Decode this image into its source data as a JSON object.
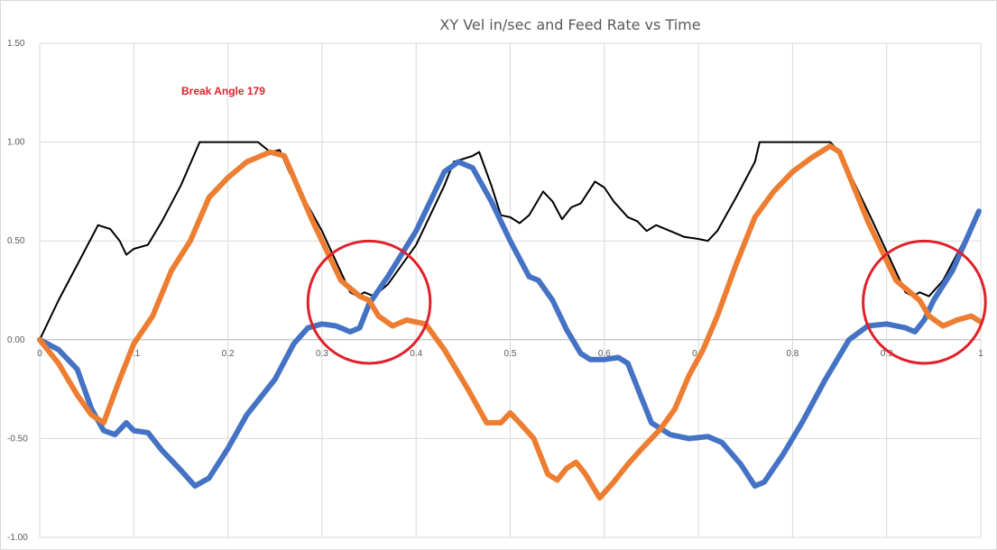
{
  "chart_data": {
    "type": "line",
    "title": "XY Vel in/sec and Feed Rate vs Time",
    "xlabel": "",
    "ylabel": "",
    "xlim": [
      0,
      1
    ],
    "ylim": [
      -1.0,
      1.5
    ],
    "x_ticks": [
      "0",
      "0.1",
      "0.2",
      "0.3",
      "0.4",
      "0.5",
      "0.6",
      "0.7",
      "0.8",
      "0.9",
      "1"
    ],
    "y_ticks": [
      "1.50",
      "1.00",
      "0.50",
      "0.00",
      "-0.50",
      "-1.00"
    ],
    "y_tick_values": [
      1.5,
      1.0,
      0.5,
      0.0,
      -0.5,
      -1.0
    ],
    "grid": true,
    "annotation": "Break Angle 179",
    "highlight_circles": [
      {
        "cx": 0.35,
        "cy": 0.19,
        "r": 0.065
      },
      {
        "cx": 0.94,
        "cy": 0.19,
        "r": 0.065
      }
    ],
    "series": [
      {
        "color": "#000000",
        "points": [
          [
            0,
            0
          ],
          [
            0.02,
            0.2
          ],
          [
            0.04,
            0.38
          ],
          [
            0.062,
            0.58
          ],
          [
            0.075,
            0.56
          ],
          [
            0.085,
            0.5
          ],
          [
            0.092,
            0.43
          ],
          [
            0.1,
            0.46
          ],
          [
            0.115,
            0.48
          ],
          [
            0.13,
            0.6
          ],
          [
            0.15,
            0.78
          ],
          [
            0.17,
            1.0
          ],
          [
            0.2,
            1.0
          ],
          [
            0.232,
            1.0
          ],
          [
            0.245,
            0.95
          ],
          [
            0.255,
            0.96
          ],
          [
            0.265,
            0.85
          ],
          [
            0.3,
            0.55
          ],
          [
            0.33,
            0.24
          ],
          [
            0.338,
            0.22
          ],
          [
            0.345,
            0.24
          ],
          [
            0.355,
            0.22
          ],
          [
            0.37,
            0.28
          ],
          [
            0.4,
            0.48
          ],
          [
            0.43,
            0.78
          ],
          [
            0.44,
            0.9
          ],
          [
            0.46,
            0.93
          ],
          [
            0.467,
            0.95
          ],
          [
            0.48,
            0.78
          ],
          [
            0.49,
            0.63
          ],
          [
            0.5,
            0.62
          ],
          [
            0.51,
            0.59
          ],
          [
            0.52,
            0.63
          ],
          [
            0.535,
            0.75
          ],
          [
            0.545,
            0.7
          ],
          [
            0.555,
            0.61
          ],
          [
            0.565,
            0.67
          ],
          [
            0.575,
            0.69
          ],
          [
            0.59,
            0.8
          ],
          [
            0.6,
            0.77
          ],
          [
            0.61,
            0.7
          ],
          [
            0.625,
            0.62
          ],
          [
            0.635,
            0.6
          ],
          [
            0.645,
            0.55
          ],
          [
            0.655,
            0.58
          ],
          [
            0.67,
            0.55
          ],
          [
            0.685,
            0.52
          ],
          [
            0.7,
            0.51
          ],
          [
            0.71,
            0.5
          ],
          [
            0.72,
            0.55
          ],
          [
            0.74,
            0.72
          ],
          [
            0.76,
            0.9
          ],
          [
            0.765,
            1.0
          ],
          [
            0.8,
            1.0
          ],
          [
            0.84,
            1.0
          ],
          [
            0.85,
            0.95
          ],
          [
            0.885,
            0.6
          ],
          [
            0.92,
            0.24
          ],
          [
            0.928,
            0.22
          ],
          [
            0.935,
            0.24
          ],
          [
            0.945,
            0.22
          ],
          [
            0.96,
            0.3
          ],
          [
            0.98,
            0.48
          ],
          [
            0.998,
            0.65
          ]
        ]
      },
      {
        "color": "#4472c4",
        "points": [
          [
            0,
            0
          ],
          [
            0.02,
            -0.05
          ],
          [
            0.04,
            -0.15
          ],
          [
            0.055,
            -0.35
          ],
          [
            0.068,
            -0.46
          ],
          [
            0.08,
            -0.48
          ],
          [
            0.092,
            -0.42
          ],
          [
            0.1,
            -0.46
          ],
          [
            0.115,
            -0.47
          ],
          [
            0.13,
            -0.56
          ],
          [
            0.15,
            -0.66
          ],
          [
            0.165,
            -0.74
          ],
          [
            0.18,
            -0.7
          ],
          [
            0.2,
            -0.55
          ],
          [
            0.22,
            -0.38
          ],
          [
            0.25,
            -0.2
          ],
          [
            0.27,
            -0.02
          ],
          [
            0.285,
            0.06
          ],
          [
            0.3,
            0.08
          ],
          [
            0.315,
            0.07
          ],
          [
            0.33,
            0.04
          ],
          [
            0.34,
            0.06
          ],
          [
            0.35,
            0.18
          ],
          [
            0.37,
            0.32
          ],
          [
            0.4,
            0.55
          ],
          [
            0.43,
            0.85
          ],
          [
            0.445,
            0.9
          ],
          [
            0.46,
            0.87
          ],
          [
            0.48,
            0.7
          ],
          [
            0.5,
            0.5
          ],
          [
            0.52,
            0.32
          ],
          [
            0.53,
            0.3
          ],
          [
            0.545,
            0.2
          ],
          [
            0.56,
            0.05
          ],
          [
            0.575,
            -0.07
          ],
          [
            0.585,
            -0.1
          ],
          [
            0.6,
            -0.1
          ],
          [
            0.615,
            -0.09
          ],
          [
            0.625,
            -0.12
          ],
          [
            0.64,
            -0.3
          ],
          [
            0.65,
            -0.42
          ],
          [
            0.67,
            -0.48
          ],
          [
            0.69,
            -0.5
          ],
          [
            0.71,
            -0.49
          ],
          [
            0.725,
            -0.52
          ],
          [
            0.745,
            -0.63
          ],
          [
            0.76,
            -0.74
          ],
          [
            0.77,
            -0.72
          ],
          [
            0.79,
            -0.58
          ],
          [
            0.81,
            -0.42
          ],
          [
            0.835,
            -0.2
          ],
          [
            0.86,
            0.0
          ],
          [
            0.88,
            0.07
          ],
          [
            0.9,
            0.08
          ],
          [
            0.92,
            0.06
          ],
          [
            0.93,
            0.04
          ],
          [
            0.94,
            0.1
          ],
          [
            0.95,
            0.2
          ],
          [
            0.97,
            0.35
          ],
          [
            0.998,
            0.65
          ]
        ]
      },
      {
        "color": "#ed7d31",
        "points": [
          [
            0,
            0
          ],
          [
            0.02,
            -0.12
          ],
          [
            0.04,
            -0.28
          ],
          [
            0.055,
            -0.38
          ],
          [
            0.068,
            -0.42
          ],
          [
            0.085,
            -0.2
          ],
          [
            0.1,
            -0.02
          ],
          [
            0.12,
            0.12
          ],
          [
            0.14,
            0.35
          ],
          [
            0.16,
            0.5
          ],
          [
            0.18,
            0.72
          ],
          [
            0.2,
            0.82
          ],
          [
            0.22,
            0.9
          ],
          [
            0.245,
            0.95
          ],
          [
            0.26,
            0.93
          ],
          [
            0.29,
            0.6
          ],
          [
            0.32,
            0.3
          ],
          [
            0.34,
            0.22
          ],
          [
            0.35,
            0.2
          ],
          [
            0.36,
            0.12
          ],
          [
            0.375,
            0.07
          ],
          [
            0.39,
            0.1
          ],
          [
            0.41,
            0.08
          ],
          [
            0.43,
            -0.05
          ],
          [
            0.455,
            -0.25
          ],
          [
            0.475,
            -0.42
          ],
          [
            0.49,
            -0.42
          ],
          [
            0.5,
            -0.37
          ],
          [
            0.51,
            -0.42
          ],
          [
            0.525,
            -0.5
          ],
          [
            0.54,
            -0.68
          ],
          [
            0.55,
            -0.71
          ],
          [
            0.56,
            -0.65
          ],
          [
            0.57,
            -0.62
          ],
          [
            0.58,
            -0.68
          ],
          [
            0.595,
            -0.8
          ],
          [
            0.61,
            -0.72
          ],
          [
            0.625,
            -0.63
          ],
          [
            0.64,
            -0.55
          ],
          [
            0.66,
            -0.45
          ],
          [
            0.675,
            -0.35
          ],
          [
            0.69,
            -0.18
          ],
          [
            0.705,
            -0.05
          ],
          [
            0.72,
            0.12
          ],
          [
            0.74,
            0.38
          ],
          [
            0.76,
            0.62
          ],
          [
            0.78,
            0.75
          ],
          [
            0.8,
            0.85
          ],
          [
            0.82,
            0.92
          ],
          [
            0.84,
            0.98
          ],
          [
            0.85,
            0.95
          ],
          [
            0.88,
            0.6
          ],
          [
            0.91,
            0.3
          ],
          [
            0.935,
            0.2
          ],
          [
            0.945,
            0.12
          ],
          [
            0.96,
            0.07
          ],
          [
            0.975,
            0.1
          ],
          [
            0.99,
            0.12
          ],
          [
            1.0,
            0.09
          ]
        ]
      }
    ]
  }
}
